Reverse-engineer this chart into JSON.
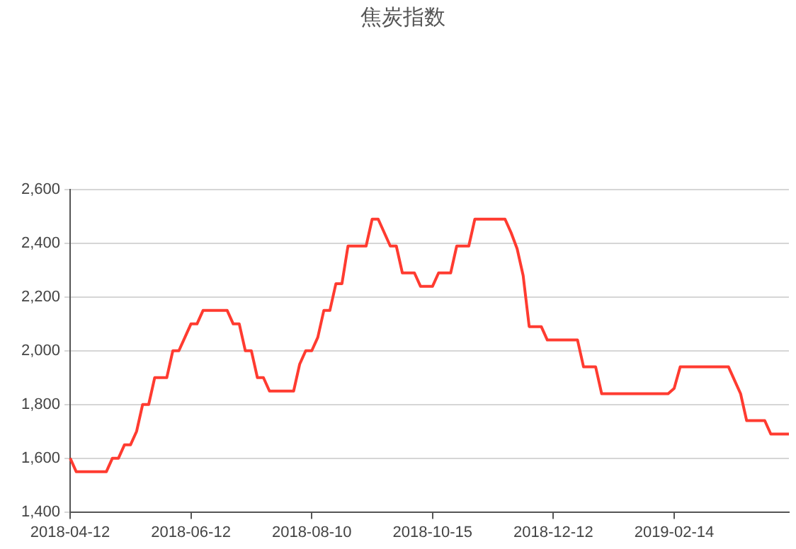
{
  "chart_data": {
    "type": "line",
    "title": "焦炭指数",
    "categories": [
      "2018-04-12",
      null,
      null,
      null,
      null,
      null,
      null,
      null,
      null,
      null,
      null,
      null,
      null,
      null,
      null,
      null,
      null,
      null,
      null,
      null,
      "2018-06-12",
      null,
      null,
      null,
      null,
      null,
      null,
      null,
      null,
      null,
      null,
      null,
      null,
      null,
      null,
      null,
      null,
      null,
      null,
      null,
      "2018-08-10",
      null,
      null,
      null,
      null,
      null,
      null,
      null,
      null,
      null,
      null,
      null,
      null,
      null,
      null,
      null,
      null,
      null,
      null,
      null,
      "2018-10-15",
      null,
      null,
      null,
      null,
      null,
      null,
      null,
      null,
      null,
      null,
      null,
      null,
      null,
      null,
      null,
      null,
      null,
      null,
      null,
      "2018-12-12",
      null,
      null,
      null,
      null,
      null,
      null,
      null,
      null,
      null,
      null,
      null,
      null,
      null,
      null,
      null,
      null,
      null,
      null,
      null,
      "2019-02-14",
      null,
      null,
      null,
      null,
      null,
      null,
      null,
      null,
      null,
      null,
      null,
      null,
      null,
      null,
      null,
      null,
      null,
      null,
      null
    ],
    "series": [
      {
        "color": "#ff3b30",
        "values": [
          1600,
          1550,
          1550,
          1550,
          1550,
          1550,
          1550,
          1600,
          1600,
          1650,
          1650,
          1700,
          1800,
          1800,
          1900,
          1900,
          1900,
          2000,
          2000,
          2050,
          2100,
          2100,
          2150,
          2150,
          2150,
          2150,
          2150,
          2100,
          2100,
          2000,
          2000,
          1900,
          1900,
          1850,
          1850,
          1850,
          1850,
          1850,
          1950,
          2000,
          2000,
          2050,
          2150,
          2150,
          2250,
          2250,
          2390,
          2390,
          2390,
          2390,
          2490,
          2490,
          2440,
          2390,
          2390,
          2290,
          2290,
          2290,
          2240,
          2240,
          2240,
          2290,
          2290,
          2290,
          2390,
          2390,
          2390,
          2490,
          2490,
          2490,
          2490,
          2490,
          2490,
          2440,
          2380,
          2280,
          2090,
          2090,
          2090,
          2040,
          2040,
          2040,
          2040,
          2040,
          2040,
          1940,
          1940,
          1940,
          1840,
          1840,
          1840,
          1840,
          1840,
          1840,
          1840,
          1840,
          1840,
          1840,
          1840,
          1840,
          1860,
          1940,
          1940,
          1940,
          1940,
          1940,
          1940,
          1940,
          1940,
          1940,
          1890,
          1840,
          1740,
          1740,
          1740,
          1740,
          1690,
          1690,
          1690,
          1690
        ]
      }
    ],
    "ylim": [
      1400,
      2600
    ],
    "yticks": [
      {
        "value": 1400,
        "label": "1,400"
      },
      {
        "value": 1600,
        "label": "1,600"
      },
      {
        "value": 1800,
        "label": "1,800"
      },
      {
        "value": 2000,
        "label": "2,000"
      },
      {
        "value": 2200,
        "label": "2,200"
      },
      {
        "value": 2400,
        "label": "2,400"
      },
      {
        "value": 2600,
        "label": "2,600"
      }
    ],
    "grid": "y",
    "legend": false,
    "marker": "none",
    "line_style": "solid"
  }
}
